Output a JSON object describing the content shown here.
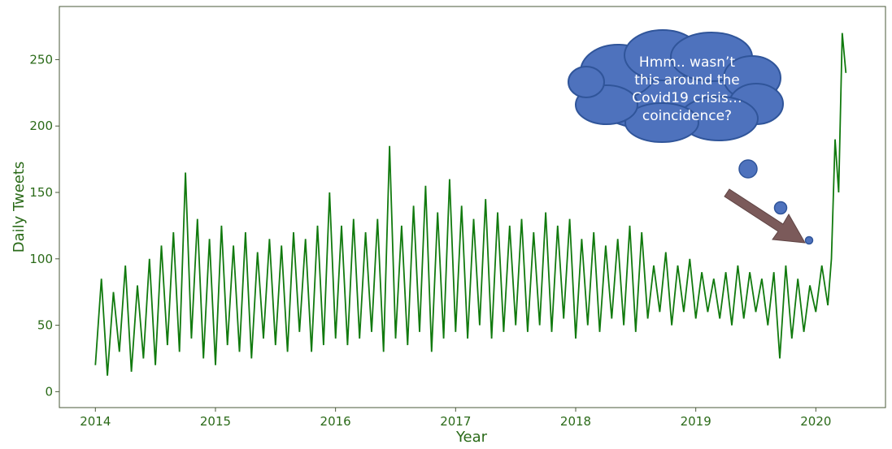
{
  "chart_data": {
    "type": "line",
    "title": "",
    "xlabel": "Year",
    "ylabel": "Daily Tweets",
    "xlim": [
      2013.7,
      2020.58
    ],
    "ylim": [
      -12,
      290
    ],
    "xticks": [
      2014,
      2015,
      2016,
      2017,
      2018,
      2019,
      2020
    ],
    "xtick_labels": [
      "2014",
      "2015",
      "2016",
      "2017",
      "2018",
      "2019",
      "2020"
    ],
    "yticks": [
      0,
      50,
      100,
      150,
      200,
      250
    ],
    "ytick_labels": [
      "0",
      "50",
      "100",
      "150",
      "200",
      "250"
    ],
    "grid": false,
    "legend": "none",
    "series": [
      {
        "color": "#117a0e",
        "x": [
          2014.0,
          2014.05,
          2014.1,
          2014.15,
          2014.2,
          2014.25,
          2014.3,
          2014.35,
          2014.4,
          2014.45,
          2014.5,
          2014.55,
          2014.6,
          2014.65,
          2014.7,
          2014.75,
          2014.8,
          2014.85,
          2014.9,
          2014.95,
          2015.0,
          2015.05,
          2015.1,
          2015.15,
          2015.2,
          2015.25,
          2015.3,
          2015.35,
          2015.4,
          2015.45,
          2015.5,
          2015.55,
          2015.6,
          2015.65,
          2015.7,
          2015.75,
          2015.8,
          2015.85,
          2015.9,
          2015.95,
          2016.0,
          2016.05,
          2016.1,
          2016.15,
          2016.2,
          2016.25,
          2016.3,
          2016.35,
          2016.4,
          2016.45,
          2016.5,
          2016.55,
          2016.6,
          2016.65,
          2016.7,
          2016.75,
          2016.8,
          2016.85,
          2016.9,
          2016.95,
          2017.0,
          2017.05,
          2017.1,
          2017.15,
          2017.2,
          2017.25,
          2017.3,
          2017.35,
          2017.4,
          2017.45,
          2017.5,
          2017.55,
          2017.6,
          2017.65,
          2017.7,
          2017.75,
          2017.8,
          2017.85,
          2017.9,
          2017.95,
          2018.0,
          2018.05,
          2018.1,
          2018.15,
          2018.2,
          2018.25,
          2018.3,
          2018.35,
          2018.4,
          2018.45,
          2018.5,
          2018.55,
          2018.6,
          2018.65,
          2018.7,
          2018.75,
          2018.8,
          2018.85,
          2018.9,
          2018.95,
          2019.0,
          2019.05,
          2019.1,
          2019.15,
          2019.2,
          2019.25,
          2019.3,
          2019.35,
          2019.4,
          2019.45,
          2019.5,
          2019.55,
          2019.6,
          2019.65,
          2019.7,
          2019.75,
          2019.8,
          2019.85,
          2019.9,
          2019.95,
          2020.0,
          2020.05,
          2020.1,
          2020.13,
          2020.16,
          2020.19,
          2020.22,
          2020.25
        ],
        "values": [
          20,
          85,
          12,
          75,
          30,
          95,
          15,
          80,
          25,
          100,
          20,
          110,
          35,
          120,
          30,
          165,
          40,
          130,
          25,
          115,
          20,
          125,
          35,
          110,
          30,
          120,
          25,
          105,
          40,
          115,
          35,
          110,
          30,
          120,
          45,
          115,
          30,
          125,
          35,
          150,
          40,
          125,
          35,
          130,
          40,
          120,
          45,
          130,
          30,
          185,
          40,
          125,
          35,
          140,
          45,
          155,
          30,
          135,
          40,
          160,
          45,
          140,
          40,
          130,
          50,
          145,
          40,
          135,
          45,
          125,
          50,
          130,
          45,
          120,
          50,
          135,
          45,
          125,
          55,
          130,
          40,
          115,
          50,
          120,
          45,
          110,
          55,
          115,
          50,
          125,
          45,
          120,
          55,
          95,
          60,
          105,
          50,
          95,
          60,
          100,
          55,
          90,
          60,
          85,
          55,
          90,
          50,
          95,
          55,
          90,
          60,
          85,
          50,
          90,
          25,
          95,
          40,
          85,
          45,
          80,
          60,
          95,
          65,
          100,
          190,
          150,
          270,
          240
        ]
      }
    ],
    "annotations": {
      "callout_text": "Hmm.. wasn’t this around the Covid19 crisis… coincidence?",
      "callout_lines": [
        "Hmm.. wasn’t",
        "this around the",
        "Covid19 crisis…",
        "coincidence?"
      ],
      "callout_color": "#4e72bd",
      "arrow_color": "#7b5a5a"
    }
  }
}
